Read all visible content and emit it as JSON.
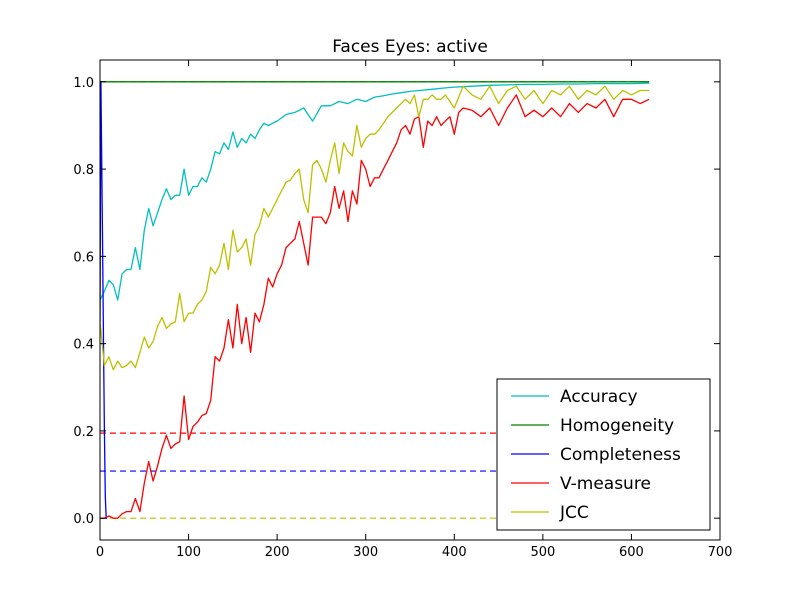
{
  "chart_data": {
    "type": "line",
    "title": "Faces Eyes: active",
    "xlabel": "",
    "ylabel": "",
    "xlim": [
      0,
      700
    ],
    "ylim": [
      -0.05,
      1.05
    ],
    "xticks": [
      "0",
      "100",
      "200",
      "300",
      "400",
      "500",
      "600",
      "700"
    ],
    "yticks": [
      "0.0",
      "0.2",
      "0.4",
      "0.6",
      "0.8",
      "1.0"
    ],
    "grid": false,
    "legend_position": "bottom-right",
    "reference_lines": [
      {
        "series": "Homogeneity",
        "y": 1.0,
        "x_range": [
          0,
          620
        ],
        "color": "#008000",
        "style": "dashed"
      },
      {
        "series": "Completeness",
        "y": 0.108,
        "x_range": [
          0,
          620
        ],
        "color": "#0000ff",
        "style": "dashed"
      },
      {
        "series": "V-measure",
        "y": 0.195,
        "x_range": [
          0,
          620
        ],
        "color": "#ff0000",
        "style": "dashed"
      },
      {
        "series": "JCC",
        "y": 0.0,
        "x_range": [
          0,
          620
        ],
        "color": "#bfbf00",
        "style": "dashed"
      }
    ],
    "series": [
      {
        "name": "Accuracy",
        "color": "#00bfbf",
        "x": [
          0,
          5,
          10,
          15,
          20,
          25,
          30,
          35,
          40,
          45,
          50,
          55,
          60,
          65,
          70,
          75,
          80,
          85,
          90,
          95,
          100,
          105,
          110,
          115,
          120,
          125,
          130,
          135,
          140,
          145,
          150,
          155,
          160,
          165,
          170,
          175,
          180,
          185,
          190,
          200,
          210,
          220,
          230,
          240,
          250,
          260,
          270,
          280,
          290,
          300,
          310,
          320,
          330,
          340,
          350,
          360,
          370,
          380,
          390,
          400,
          420,
          440,
          460,
          480,
          500,
          520,
          540,
          560,
          580,
          600,
          620
        ],
        "y": [
          0.5,
          0.52,
          0.545,
          0.535,
          0.5,
          0.56,
          0.57,
          0.57,
          0.62,
          0.57,
          0.66,
          0.71,
          0.67,
          0.7,
          0.73,
          0.755,
          0.73,
          0.74,
          0.74,
          0.8,
          0.74,
          0.76,
          0.76,
          0.78,
          0.77,
          0.8,
          0.84,
          0.835,
          0.86,
          0.845,
          0.885,
          0.85,
          0.87,
          0.86,
          0.88,
          0.87,
          0.89,
          0.905,
          0.9,
          0.91,
          0.925,
          0.93,
          0.94,
          0.91,
          0.945,
          0.945,
          0.955,
          0.95,
          0.96,
          0.955,
          0.965,
          0.968,
          0.972,
          0.975,
          0.978,
          0.98,
          0.982,
          0.984,
          0.986,
          0.988,
          0.99,
          0.992,
          0.993,
          0.994,
          0.994,
          0.995,
          0.995,
          0.996,
          0.996,
          0.996,
          0.997
        ]
      },
      {
        "name": "Homogeneity",
        "color": "#008000",
        "x": [
          0,
          620
        ],
        "y": [
          1.0,
          1.0
        ]
      },
      {
        "name": "Completeness",
        "color": "#0000ff",
        "x": [
          0,
          1,
          2,
          3,
          4,
          5,
          6,
          7,
          8
        ],
        "y": [
          0.45,
          1.0,
          0.8,
          0.6,
          0.4,
          0.2,
          0.05,
          0.0,
          0.0
        ]
      },
      {
        "name": "V-measure",
        "color": "#ff0000",
        "x": [
          0,
          5,
          10,
          15,
          20,
          25,
          30,
          35,
          40,
          45,
          50,
          55,
          60,
          65,
          70,
          75,
          80,
          85,
          90,
          95,
          100,
          105,
          110,
          115,
          120,
          125,
          130,
          135,
          140,
          145,
          150,
          155,
          160,
          165,
          170,
          175,
          180,
          185,
          190,
          195,
          200,
          205,
          210,
          215,
          220,
          225,
          230,
          235,
          240,
          245,
          250,
          255,
          260,
          265,
          270,
          275,
          280,
          285,
          290,
          295,
          300,
          305,
          310,
          315,
          320,
          325,
          330,
          335,
          340,
          345,
          350,
          355,
          360,
          365,
          370,
          375,
          380,
          385,
          390,
          395,
          400,
          405,
          410,
          420,
          430,
          440,
          450,
          460,
          470,
          480,
          490,
          500,
          510,
          520,
          530,
          540,
          550,
          560,
          570,
          580,
          590,
          600,
          610,
          620
        ],
        "y": [
          0.0,
          0.0,
          0.005,
          0.0,
          0.0,
          0.01,
          0.015,
          0.015,
          0.045,
          0.015,
          0.08,
          0.13,
          0.085,
          0.12,
          0.16,
          0.19,
          0.16,
          0.17,
          0.175,
          0.28,
          0.18,
          0.21,
          0.22,
          0.235,
          0.24,
          0.27,
          0.37,
          0.36,
          0.39,
          0.455,
          0.39,
          0.49,
          0.4,
          0.46,
          0.38,
          0.47,
          0.45,
          0.49,
          0.55,
          0.53,
          0.56,
          0.58,
          0.62,
          0.63,
          0.64,
          0.68,
          0.63,
          0.58,
          0.69,
          0.69,
          0.69,
          0.675,
          0.7,
          0.76,
          0.71,
          0.75,
          0.68,
          0.75,
          0.72,
          0.82,
          0.8,
          0.76,
          0.78,
          0.78,
          0.8,
          0.82,
          0.84,
          0.86,
          0.89,
          0.9,
          0.88,
          0.915,
          0.92,
          0.85,
          0.91,
          0.9,
          0.92,
          0.9,
          0.91,
          0.92,
          0.88,
          0.93,
          0.94,
          0.935,
          0.92,
          0.94,
          0.9,
          0.94,
          0.97,
          0.92,
          0.935,
          0.92,
          0.94,
          0.92,
          0.95,
          0.93,
          0.95,
          0.94,
          0.96,
          0.92,
          0.96,
          0.96,
          0.95,
          0.96
        ]
      },
      {
        "name": "JCC",
        "color": "#bfbf00",
        "x": [
          0,
          5,
          10,
          15,
          20,
          25,
          30,
          35,
          40,
          45,
          50,
          55,
          60,
          65,
          70,
          75,
          80,
          85,
          90,
          95,
          100,
          105,
          110,
          115,
          120,
          125,
          130,
          135,
          140,
          145,
          150,
          155,
          160,
          165,
          170,
          175,
          180,
          185,
          190,
          195,
          200,
          205,
          210,
          215,
          220,
          225,
          230,
          235,
          240,
          245,
          250,
          255,
          260,
          265,
          270,
          275,
          280,
          285,
          290,
          295,
          300,
          305,
          310,
          315,
          320,
          325,
          330,
          335,
          340,
          345,
          350,
          355,
          360,
          365,
          370,
          375,
          380,
          385,
          390,
          400,
          410,
          420,
          430,
          440,
          450,
          460,
          470,
          480,
          490,
          500,
          510,
          520,
          530,
          540,
          550,
          560,
          570,
          580,
          590,
          600,
          610,
          620
        ],
        "y": [
          0.45,
          0.35,
          0.37,
          0.34,
          0.36,
          0.345,
          0.35,
          0.36,
          0.345,
          0.38,
          0.415,
          0.39,
          0.405,
          0.44,
          0.46,
          0.435,
          0.445,
          0.45,
          0.515,
          0.45,
          0.47,
          0.47,
          0.49,
          0.5,
          0.52,
          0.575,
          0.56,
          0.58,
          0.63,
          0.57,
          0.66,
          0.61,
          0.62,
          0.64,
          0.58,
          0.65,
          0.67,
          0.71,
          0.69,
          0.71,
          0.73,
          0.75,
          0.77,
          0.775,
          0.79,
          0.8,
          0.73,
          0.7,
          0.81,
          0.82,
          0.8,
          0.77,
          0.82,
          0.86,
          0.79,
          0.86,
          0.84,
          0.83,
          0.9,
          0.85,
          0.87,
          0.88,
          0.88,
          0.89,
          0.905,
          0.92,
          0.93,
          0.94,
          0.95,
          0.96,
          0.95,
          0.97,
          0.92,
          0.96,
          0.96,
          0.97,
          0.96,
          0.96,
          0.97,
          0.94,
          0.99,
          0.97,
          0.96,
          0.99,
          0.95,
          0.98,
          0.99,
          0.96,
          0.98,
          0.95,
          0.98,
          0.97,
          0.99,
          0.96,
          0.98,
          0.97,
          0.99,
          0.96,
          0.98,
          0.97,
          0.98,
          0.98
        ]
      }
    ]
  }
}
